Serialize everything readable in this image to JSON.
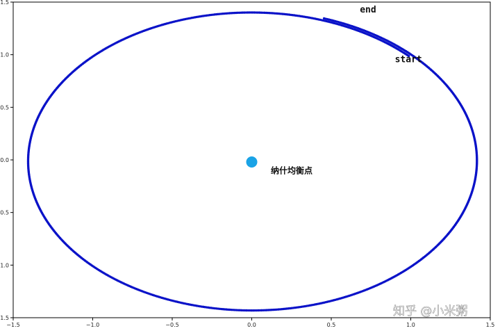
{
  "chart_data": {
    "type": "scatter",
    "title": "",
    "xlabel": "",
    "ylabel": "",
    "xlim": [
      -1.5,
      1.5
    ],
    "ylim": [
      -1.5,
      1.5
    ],
    "x_ticks": [
      "−1.5",
      "−1.0",
      "−0.5",
      "0.0",
      "0.5",
      "1.0",
      "1.5"
    ],
    "y_ticks": [
      "−1.5",
      "−1.0",
      "−0.5",
      "0.0",
      "0.5",
      "1.0",
      "1.5"
    ],
    "grid": false,
    "series": [
      {
        "marker": "dot",
        "color": "#0a12c8",
        "description_values": {
          "ellipse_semi_axis_x": 1.42,
          "ellipse_semi_axis_y": 1.43,
          "center": [
            0.0,
            -0.01
          ],
          "spiral_start": [
            1.0,
            1.0
          ],
          "spiral_end": [
            0.47,
            1.39
          ]
        }
      }
    ],
    "equilibrium_point": {
      "x": 0.0,
      "y": -0.02,
      "color": "#1aa3e6"
    },
    "annotations": [
      {
        "text": "end",
        "x": 0.68,
        "y": 1.4
      },
      {
        "text": "start",
        "x": 0.9,
        "y": 0.93
      },
      {
        "text": "纳什均衡点",
        "x": 0.12,
        "y": -0.13
      }
    ]
  },
  "watermark": "知乎 @小米粥"
}
